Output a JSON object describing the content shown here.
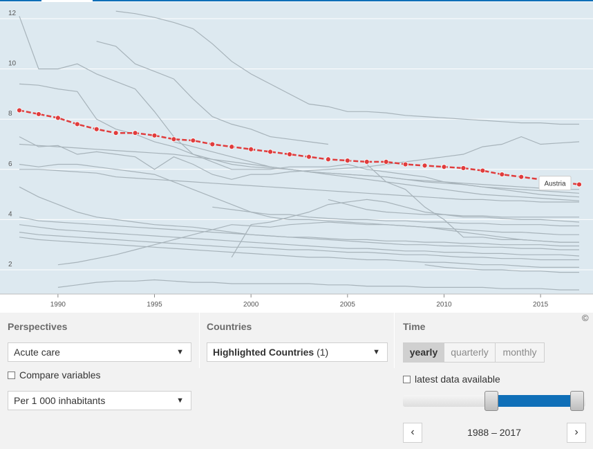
{
  "chart_data": {
    "type": "line",
    "xlabel": "",
    "ylabel": "",
    "xlim": [
      1987.5,
      2017.5
    ],
    "ylim": [
      1,
      12.5
    ],
    "x_ticks": [
      1990,
      1995,
      2000,
      2005,
      2010,
      2015
    ],
    "y_ticks": [
      2,
      4,
      6,
      8,
      10,
      12
    ],
    "highlight_color": "#e03c3c",
    "background_color": "#dde9f0",
    "other_series_color": "#a7b3ba",
    "grid": true,
    "highlight": {
      "name": "Austria",
      "x": [
        1988,
        1989,
        1990,
        1991,
        1992,
        1993,
        1994,
        1995,
        1996,
        1997,
        1998,
        1999,
        2000,
        2001,
        2002,
        2003,
        2004,
        2005,
        2006,
        2007,
        2008,
        2009,
        2010,
        2011,
        2012,
        2013,
        2014,
        2017
      ],
      "values": [
        8.35,
        8.2,
        8.05,
        7.8,
        7.6,
        7.45,
        7.45,
        7.35,
        7.2,
        7.15,
        7.0,
        6.9,
        6.8,
        6.7,
        6.6,
        6.5,
        6.4,
        6.35,
        6.3,
        6.3,
        6.2,
        6.15,
        6.1,
        6.05,
        5.95,
        5.8,
        5.7,
        5.4
      ]
    },
    "series": [
      {
        "x": [
          1993,
          1994,
          1995,
          1996,
          1997,
          1998,
          1999,
          2000,
          2001,
          2002,
          2003,
          2004,
          2005,
          2006,
          2007,
          2008,
          2009,
          2010,
          2011,
          2012,
          2013,
          2014,
          2015,
          2016,
          2017
        ],
        "values": [
          12.3,
          12.2,
          12.05,
          11.85,
          11.6,
          11.0,
          10.3,
          9.8,
          9.4,
          9.0,
          8.6,
          8.5,
          8.3,
          8.3,
          8.25,
          8.15,
          8.1,
          8.05,
          8.0,
          7.95,
          7.9,
          7.85,
          7.85,
          7.8,
          7.8
        ]
      },
      {
        "x": [
          1988,
          1989,
          1990,
          1991,
          1992,
          1993,
          1994,
          1995,
          1996,
          1997,
          1998,
          1999,
          2000,
          2001,
          2002,
          2003,
          2004,
          2005,
          2006,
          2007,
          2008,
          2009,
          2010,
          2011,
          2012,
          2013,
          2014,
          2015,
          2016,
          2017
        ],
        "values": [
          12.1,
          10.0,
          10.0,
          10.2,
          9.8,
          9.5,
          9.2,
          8.3,
          7.3,
          6.6,
          6.3,
          6.0,
          6.0,
          6.0,
          6.1,
          6.1,
          6.1,
          6.2,
          6.0,
          5.9,
          5.8,
          5.7,
          5.5,
          5.4,
          5.3,
          5.2,
          5.1,
          5.0,
          4.95,
          4.9
        ]
      },
      {
        "x": [
          1992,
          1993,
          1994,
          1995,
          1996,
          1997,
          1998,
          1999,
          2000,
          2001,
          2002,
          2003,
          2004
        ],
        "values": [
          11.1,
          10.9,
          10.2,
          9.9,
          9.6,
          8.8,
          8.1,
          7.8,
          7.6,
          7.3,
          7.2,
          7.1,
          7.0
        ]
      },
      {
        "x": [
          1988,
          1989,
          1990,
          1991,
          1992,
          1993,
          1994,
          1995,
          1996,
          1997,
          1998,
          1999,
          2000,
          2001,
          2002,
          2003,
          2004,
          2005,
          2006,
          2007,
          2008,
          2009,
          2010,
          2011,
          2012,
          2013,
          2014,
          2015,
          2016,
          2017
        ],
        "values": [
          9.4,
          9.35,
          9.2,
          9.1,
          8.0,
          7.6,
          7.4,
          7.1,
          6.9,
          6.6,
          6.4,
          6.2,
          6.1,
          6.05,
          6.0,
          5.9,
          5.85,
          5.8,
          5.75,
          5.7,
          5.6,
          5.55,
          5.5,
          5.45,
          5.4,
          5.35,
          5.3,
          5.25,
          5.2,
          5.2
        ]
      },
      {
        "x": [
          1988,
          1989,
          1990,
          1991,
          1992,
          1993,
          1994,
          1995,
          1996,
          1997,
          1998,
          1999,
          2000,
          2001,
          2002,
          2003,
          2004,
          2005,
          2006,
          2007,
          2008,
          2009,
          2010,
          2011,
          2012,
          2013,
          2014,
          2015,
          2016,
          2017
        ],
        "values": [
          7.3,
          6.9,
          6.95,
          6.6,
          6.7,
          6.6,
          6.5,
          6.0,
          6.5,
          6.2,
          5.8,
          5.6,
          5.8,
          5.8,
          5.9,
          5.95,
          6.0,
          6.05,
          6.1,
          6.2,
          6.3,
          6.4,
          6.5,
          6.6,
          6.9,
          7.0,
          7.3,
          7.0,
          7.05,
          7.1
        ]
      },
      {
        "x": [
          1988,
          1989,
          1990,
          1991,
          1992,
          1993,
          1994,
          1995,
          1996,
          1997,
          1998,
          1999,
          2000,
          2001,
          2002,
          2003,
          2004,
          2005,
          2006,
          2007,
          2008,
          2009,
          2010,
          2011,
          2012,
          2013,
          2014,
          2015,
          2016,
          2017
        ],
        "values": [
          7.0,
          6.95,
          6.9,
          6.85,
          6.8,
          6.75,
          6.7,
          6.65,
          6.6,
          6.5,
          6.4,
          6.3,
          6.2,
          6.1,
          6.0,
          5.9,
          5.8,
          5.7,
          5.6,
          5.5,
          5.4,
          5.3,
          5.2,
          5.1,
          5.0,
          4.95,
          4.9,
          4.85,
          4.8,
          4.75
        ]
      },
      {
        "x": [
          1988,
          1989,
          1990,
          1991,
          1992,
          1993,
          1994,
          1995,
          1996,
          1997,
          1998,
          1999,
          2000,
          2001,
          2002,
          2003,
          2004,
          2005,
          2006,
          2007,
          2008,
          2009,
          2010,
          2011,
          2012,
          2013,
          2014,
          2015,
          2016,
          2017
        ],
        "values": [
          6.0,
          6.0,
          5.95,
          5.9,
          5.85,
          5.7,
          5.65,
          5.6,
          5.55,
          5.5,
          5.45,
          5.4,
          5.35,
          5.3,
          5.25,
          5.2,
          5.15,
          5.1,
          5.05,
          5.0,
          4.95,
          4.9,
          4.85,
          4.8,
          4.8,
          4.75,
          4.75,
          4.7,
          4.7,
          4.7
        ]
      },
      {
        "x": [
          1988,
          1989,
          1990,
          1991,
          1992,
          1993,
          1994,
          1995,
          1996,
          1997,
          1998,
          1999,
          2000,
          2001,
          2002,
          2003,
          2004,
          2005,
          2006,
          2007,
          2008,
          2009,
          2010,
          2011,
          2012,
          2013,
          2014,
          2015,
          2016,
          2017
        ],
        "values": [
          6.2,
          6.1,
          6.2,
          6.2,
          6.1,
          6.0,
          5.9,
          5.8,
          5.5,
          5.2,
          4.9,
          4.6,
          4.3,
          4.1,
          4.0,
          4.0,
          3.95,
          3.9,
          3.85,
          3.8,
          3.75,
          3.7,
          3.65,
          3.6,
          3.55,
          3.5,
          3.5,
          3.45,
          3.4,
          3.4
        ]
      },
      {
        "x": [
          1988,
          1989,
          1990,
          1991,
          1992,
          1993,
          1994,
          1995,
          1996,
          1997,
          1998,
          1999,
          2000,
          2001,
          2002,
          2003,
          2004,
          2005,
          2006,
          2007,
          2008,
          2009,
          2010,
          2011,
          2012,
          2013,
          2014,
          2015,
          2016,
          2017
        ],
        "values": [
          5.3,
          4.9,
          4.6,
          4.3,
          4.1,
          4.0,
          3.9,
          3.8,
          3.75,
          3.7,
          3.6,
          3.5,
          3.4,
          3.35,
          3.3,
          3.25,
          3.2,
          3.15,
          3.1,
          3.05,
          3.0,
          3.0,
          2.95,
          2.95,
          2.9,
          2.9,
          2.85,
          2.85,
          2.8,
          2.8
        ]
      },
      {
        "x": [
          1988,
          1989,
          1990,
          1991,
          1992,
          1993,
          1994,
          1995,
          1996,
          1997,
          1998,
          1999,
          2000,
          2001,
          2002,
          2003,
          2004,
          2005,
          2006,
          2007,
          2008,
          2009,
          2010,
          2011,
          2012,
          2013,
          2014,
          2015,
          2016,
          2017
        ],
        "values": [
          4.1,
          3.95,
          3.9,
          3.85,
          3.8,
          3.75,
          3.7,
          3.65,
          3.6,
          3.55,
          3.5,
          3.45,
          3.4,
          3.35,
          3.3,
          3.3,
          3.25,
          3.2,
          3.2,
          3.15,
          3.15,
          3.1,
          3.1,
          3.05,
          3.05,
          3.0,
          3.0,
          3.0,
          2.95,
          2.95
        ]
      },
      {
        "x": [
          1988,
          1989,
          1990,
          1991,
          1992,
          1993,
          1994,
          1995,
          1996,
          1997,
          1998,
          1999,
          2000,
          2001,
          2002,
          2003,
          2004,
          2005,
          2006,
          2007,
          2008,
          2009,
          2010,
          2011,
          2012,
          2013,
          2014,
          2015,
          2016,
          2017
        ],
        "values": [
          3.8,
          3.7,
          3.6,
          3.55,
          3.5,
          3.45,
          3.4,
          3.35,
          3.3,
          3.25,
          3.2,
          3.15,
          3.1,
          3.05,
          3.0,
          2.95,
          2.9,
          2.85,
          2.85,
          2.8,
          2.75,
          2.75,
          2.7,
          2.7,
          2.65,
          2.65,
          2.6,
          2.6,
          2.6,
          2.55
        ]
      },
      {
        "x": [
          1988,
          1989,
          1990,
          1991,
          1992,
          1993,
          1994,
          1995,
          1996,
          1997,
          1998,
          1999,
          2000,
          2001,
          2002,
          2003,
          2004,
          2005,
          2006,
          2007,
          2008,
          2009,
          2010,
          2011,
          2012,
          2013,
          2014,
          2015,
          2016,
          2017
        ],
        "values": [
          3.5,
          3.4,
          3.35,
          3.3,
          3.25,
          3.2,
          3.15,
          3.1,
          3.05,
          3.0,
          2.95,
          2.9,
          2.9,
          2.85,
          2.8,
          2.8,
          2.75,
          2.7,
          2.7,
          2.65,
          2.6,
          2.6,
          2.55,
          2.5,
          2.5,
          2.45,
          2.45,
          2.4,
          2.4,
          2.4
        ]
      },
      {
        "x": [
          1988,
          1989,
          1990,
          1991,
          1992,
          1993,
          1994,
          1995,
          1996,
          1997,
          1998,
          1999,
          2000,
          2001,
          2002,
          2003,
          2004,
          2005,
          2006,
          2007,
          2008,
          2009,
          2010,
          2011,
          2012,
          2013,
          2014,
          2015,
          2016,
          2017
        ],
        "values": [
          3.3,
          3.2,
          3.15,
          3.1,
          3.05,
          3.0,
          2.95,
          2.9,
          2.85,
          2.8,
          2.75,
          2.7,
          2.65,
          2.6,
          2.55,
          2.5,
          2.5,
          2.45,
          2.4,
          2.4,
          2.35,
          2.3,
          2.3,
          2.25,
          2.2,
          2.2,
          2.15,
          2.1,
          2.1,
          2.1
        ]
      },
      {
        "x": [
          1990,
          1991,
          1992,
          1993,
          1994,
          1995,
          1996,
          1997,
          1998,
          1999,
          2000,
          2001,
          2002,
          2003,
          2004,
          2005,
          2006,
          2007,
          2008,
          2009,
          2010,
          2011,
          2012,
          2013,
          2014,
          2015,
          2016,
          2017
        ],
        "values": [
          2.2,
          2.3,
          2.45,
          2.6,
          2.8,
          3.0,
          3.2,
          3.4,
          3.6,
          3.8,
          3.75,
          3.7,
          3.8,
          3.85,
          3.9,
          3.85,
          3.8,
          3.8,
          3.75,
          3.7,
          3.6,
          3.5,
          3.4,
          3.3,
          3.2,
          3.15,
          3.1,
          3.1
        ]
      },
      {
        "x": [
          1998,
          1999,
          2000,
          2001,
          2002,
          2003,
          2004,
          2005,
          2006,
          2007,
          2008,
          2009,
          2010,
          2011,
          2012,
          2013,
          2014,
          2015,
          2016,
          2017
        ],
        "values": [
          4.5,
          4.4,
          4.3,
          4.2,
          4.2,
          4.1,
          4.05,
          4.0,
          4.0,
          3.95,
          3.95,
          3.9,
          3.9,
          3.85,
          3.85,
          3.8,
          3.8,
          3.8,
          3.75,
          3.75
        ]
      },
      {
        "x": [
          1999,
          2000,
          2001,
          2002,
          2003,
          2004,
          2005,
          2006,
          2007,
          2008,
          2009,
          2010,
          2011,
          2012,
          2013,
          2014,
          2015,
          2016,
          2017
        ],
        "values": [
          2.5,
          3.8,
          3.9,
          4.1,
          4.3,
          4.6,
          4.7,
          4.8,
          4.7,
          4.5,
          4.3,
          4.2,
          4.1,
          4.1,
          4.05,
          4.0,
          4.0,
          3.95,
          3.9
        ]
      },
      {
        "x": [
          2004,
          2005,
          2006,
          2007,
          2008,
          2009,
          2010,
          2011,
          2012,
          2013,
          2014,
          2015,
          2016,
          2017
        ],
        "values": [
          4.8,
          4.6,
          4.4,
          4.3,
          4.25,
          4.2,
          4.2,
          4.15,
          4.15,
          4.1,
          4.1,
          4.1,
          4.1,
          4.1
        ]
      },
      {
        "x": [
          2006,
          2007,
          2008,
          2009,
          2010,
          2011,
          2012,
          2013,
          2014,
          2015,
          2016,
          2017
        ],
        "values": [
          6.2,
          5.5,
          5.2,
          4.5,
          4.0,
          3.3,
          3.3,
          3.2,
          3.2,
          3.15,
          3.1,
          3.1
        ]
      },
      {
        "x": [
          1990,
          1991,
          1992,
          1993,
          1994,
          1995,
          1996,
          1997,
          1998,
          1999,
          2000,
          2001,
          2002,
          2003,
          2004,
          2005,
          2006,
          2007,
          2008,
          2009,
          2010,
          2011,
          2012,
          2013,
          2014,
          2015,
          2016,
          2017
        ],
        "values": [
          1.3,
          1.4,
          1.5,
          1.55,
          1.55,
          1.6,
          1.55,
          1.5,
          1.5,
          1.45,
          1.45,
          1.45,
          1.45,
          1.45,
          1.4,
          1.4,
          1.35,
          1.35,
          1.35,
          1.3,
          1.3,
          1.3,
          1.3,
          1.25,
          1.25,
          1.25,
          1.2,
          1.2
        ]
      },
      {
        "x": [
          2009,
          2010,
          2011,
          2012,
          2013,
          2014,
          2015,
          2016,
          2017
        ],
        "values": [
          2.2,
          2.1,
          2.05,
          2.0,
          2.0,
          1.95,
          1.95,
          1.9,
          1.9
        ]
      },
      {
        "x": [
          1996,
          1997,
          1998,
          1999,
          2000,
          2001,
          2002,
          2003,
          2004,
          2005,
          2006,
          2007,
          2008,
          2009,
          2010,
          2011,
          2012,
          2013,
          2014,
          2015,
          2016,
          2017
        ],
        "values": [
          7.1,
          6.9,
          6.7,
          6.5,
          6.3,
          6.1,
          6.0,
          5.9,
          5.85,
          5.8,
          5.75,
          5.7,
          5.6,
          5.5,
          5.45,
          5.4,
          5.3,
          5.25,
          5.2,
          5.15,
          5.1,
          5.05
        ]
      }
    ]
  },
  "tooltip": {
    "label": "Austria"
  },
  "copyright": "©",
  "perspectives": {
    "title": "Perspectives",
    "selected": "Acute care",
    "compare_label": "Compare variables",
    "unit_selected": "Per 1 000 inhabitants"
  },
  "countries": {
    "title": "Countries",
    "selected": "Highlighted Countries",
    "count": "(1)"
  },
  "time": {
    "title": "Time",
    "tabs": [
      "yearly",
      "quarterly",
      "monthly"
    ],
    "active_tab": "yearly",
    "latest_label": "latest data available",
    "range_text": "1988 – 2017",
    "slider_min": 1960,
    "slider_max": 2017,
    "slider_from": 1988,
    "slider_to": 2017
  },
  "icons": {
    "dropdown": "caret-down-icon",
    "prev": "chevron-left-icon",
    "next": "chevron-right-icon"
  }
}
